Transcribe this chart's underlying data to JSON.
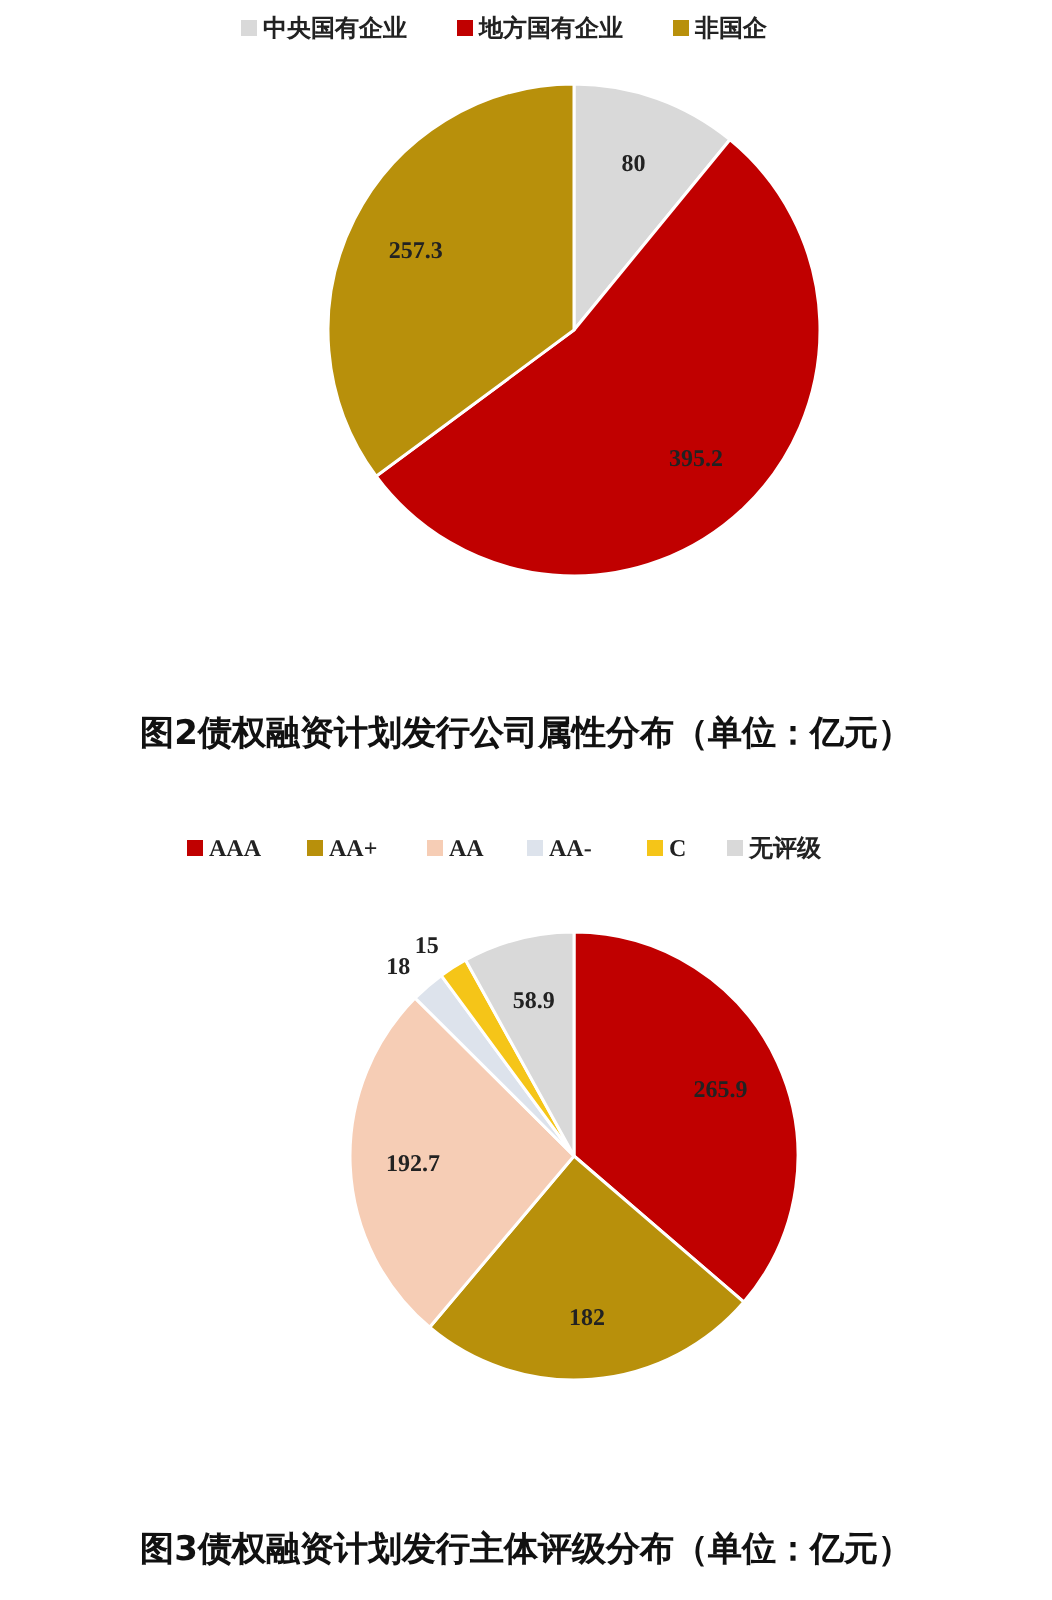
{
  "chart_data": [
    {
      "type": "pie",
      "title": "图2债权融资计划发行公司属性分布（单位：亿元）",
      "categories": [
        "中央国有企业",
        "地方国有企业",
        "非国企"
      ],
      "values": [
        80,
        395.2,
        257.3
      ],
      "colors": [
        "#d9d9d9",
        "#c00000",
        "#b8900b"
      ],
      "data_labels": true,
      "legend": "top"
    },
    {
      "type": "pie",
      "title": "图3债权融资计划发行主体评级分布（单位：亿元）",
      "categories": [
        "AAA",
        "AA+",
        "AA",
        "AA-",
        "C",
        "无评级"
      ],
      "values": [
        265.9,
        182,
        192.7,
        18,
        15,
        58.9
      ],
      "colors": [
        "#c00000",
        "#b8900b",
        "#f6cdb5",
        "#dde3ec",
        "#f5c518",
        "#d9d9d9"
      ],
      "data_labels": true,
      "legend": "top"
    }
  ]
}
